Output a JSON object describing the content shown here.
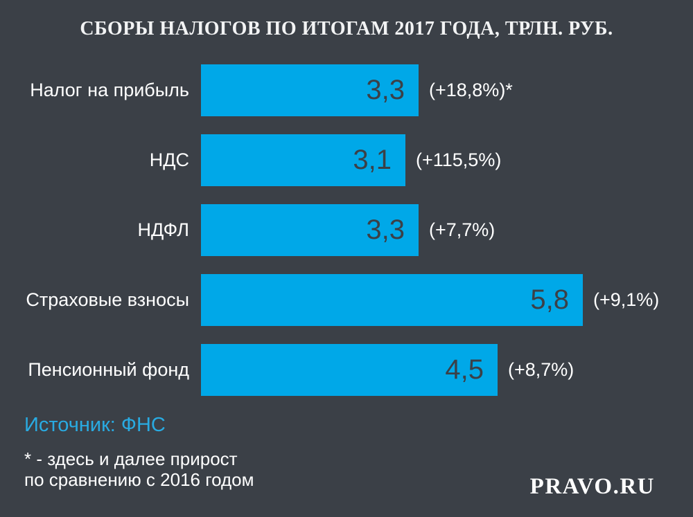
{
  "title": "СБОРЫ НАЛОГОВ ПО ИТОГАМ 2017 ГОДА, ТРЛН. РУБ.",
  "chart_data": {
    "type": "bar",
    "orientation": "horizontal",
    "title": "СБОРЫ НАЛОГОВ ПО ИТОГАМ 2017 ГОДА, ТРЛН. РУБ.",
    "unit": "трлн. руб.",
    "categories": [
      "Налог на прибыль",
      "НДС",
      "НДФЛ",
      "Страховые взносы",
      "Пенсионный фонд"
    ],
    "values": [
      3.3,
      3.1,
      3.3,
      5.8,
      4.5
    ],
    "value_labels": [
      "3,3",
      "3,1",
      "3,3",
      "5,8",
      "4,5"
    ],
    "growth_labels": [
      "(+18,8%)*",
      "(+115,5%)",
      "(+7,7%)",
      "(+9,1%)",
      "(+8,7%)"
    ],
    "xmax": 5.8,
    "grid": false,
    "legend": false
  },
  "source": {
    "label": "Источник: ФНС"
  },
  "footnote": {
    "line1": "* - здесь и далее прирост",
    "line2": "по сравнению с 2016 годом"
  },
  "brand": {
    "label": "PRAVO.RU"
  },
  "colors": {
    "background": "#3b4047",
    "bar": "#00a8e8",
    "bar_value_text": "#3b4047",
    "text": "#ffffff",
    "source_accent": "#29abe2"
  }
}
